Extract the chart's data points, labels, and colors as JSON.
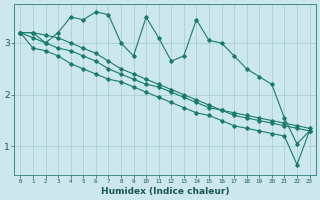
{
  "xlabel": "Humidex (Indice chaleur)",
  "ylabel": "",
  "background_color": "#cce8ee",
  "grid_color": "#aacfd8",
  "line_color": "#1a7a6a",
  "xlim": [
    -0.5,
    23.5
  ],
  "ylim": [
    0.45,
    3.75
  ],
  "yticks": [
    1,
    2,
    3
  ],
  "xticks": [
    0,
    1,
    2,
    3,
    4,
    5,
    6,
    7,
    8,
    9,
    10,
    11,
    12,
    13,
    14,
    15,
    16,
    17,
    18,
    19,
    20,
    21,
    22,
    23
  ],
  "line1_x": [
    0,
    1,
    2,
    3,
    4,
    5,
    6,
    7,
    8,
    9,
    10,
    11,
    12,
    13,
    14,
    15,
    16,
    17,
    18,
    19,
    20,
    21,
    22,
    23
  ],
  "line1_y": [
    3.2,
    3.2,
    3.0,
    3.2,
    3.5,
    3.45,
    3.6,
    3.55,
    3.0,
    2.75,
    3.5,
    3.1,
    2.65,
    2.75,
    3.45,
    3.05,
    3.0,
    2.75,
    2.5,
    2.35,
    2.2,
    1.55,
    1.05,
    1.3
  ],
  "line2_x": [
    0,
    1,
    2,
    3,
    4,
    5,
    6,
    7,
    8,
    9,
    10,
    11,
    12,
    13,
    14,
    15,
    16,
    17,
    18,
    19,
    20,
    21,
    22,
    23
  ],
  "line2_y": [
    3.2,
    3.2,
    3.15,
    3.1,
    3.0,
    2.9,
    2.8,
    2.65,
    2.5,
    2.4,
    2.3,
    2.2,
    2.1,
    2.0,
    1.9,
    1.8,
    1.7,
    1.65,
    1.6,
    1.55,
    1.5,
    1.45,
    1.4,
    1.35
  ],
  "line3_x": [
    0,
    1,
    2,
    3,
    4,
    5,
    6,
    7,
    8,
    9,
    10,
    11,
    12,
    13,
    14,
    15,
    16,
    17,
    18,
    19,
    20,
    21,
    22,
    23
  ],
  "line3_y": [
    3.2,
    3.1,
    3.0,
    2.9,
    2.85,
    2.75,
    2.65,
    2.5,
    2.4,
    2.3,
    2.2,
    2.15,
    2.05,
    1.95,
    1.85,
    1.75,
    1.7,
    1.6,
    1.55,
    1.5,
    1.45,
    1.4,
    1.35,
    1.3
  ],
  "line4_x": [
    0,
    1,
    2,
    3,
    4,
    5,
    6,
    7,
    8,
    9,
    10,
    11,
    12,
    13,
    14,
    15,
    16,
    17,
    18,
    19,
    20,
    21,
    22,
    23
  ],
  "line4_y": [
    3.2,
    2.9,
    2.85,
    2.75,
    2.6,
    2.5,
    2.4,
    2.3,
    2.25,
    2.15,
    2.05,
    1.95,
    1.85,
    1.75,
    1.65,
    1.6,
    1.5,
    1.4,
    1.35,
    1.3,
    1.25,
    1.2,
    0.65,
    1.3
  ]
}
